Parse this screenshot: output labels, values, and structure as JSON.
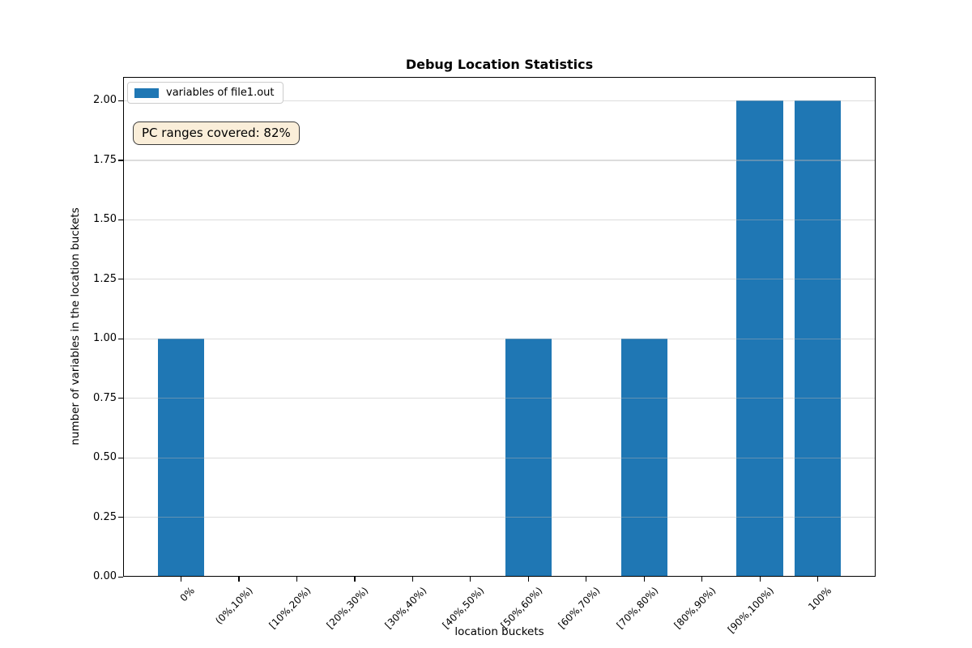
{
  "chart_data": {
    "type": "bar",
    "title": "Debug Location Statistics",
    "xlabel": "location buckets",
    "ylabel": "number of variables in the location buckets",
    "categories": [
      "0%",
      "(0%,10%)",
      "[10%,20%)",
      "[20%,30%)",
      "[30%,40%)",
      "[40%,50%)",
      "[50%,60%)",
      "[60%,70%)",
      "[70%,80%)",
      "[80%,90%)",
      "[90%,100%)",
      "100%"
    ],
    "series": [
      {
        "name": "variables of file1.out",
        "values": [
          1,
          0,
          0,
          0,
          0,
          0,
          1,
          0,
          1,
          0,
          2,
          2
        ]
      }
    ],
    "ylim": [
      0,
      2.1
    ],
    "yticks": [
      0,
      0.25,
      0.5,
      0.75,
      1.0,
      1.25,
      1.5,
      1.75,
      2.0
    ],
    "ytick_decimals": 2,
    "xtick_rotation": 45,
    "grid": "y",
    "legend_position": "upper-left",
    "bar_color": "#1f77b4",
    "grid_color": "#b2b2b2",
    "annotations": [
      {
        "text": "PC ranges covered: 82%",
        "bg": "#faeed9",
        "border": "#3c3c3c"
      }
    ]
  }
}
